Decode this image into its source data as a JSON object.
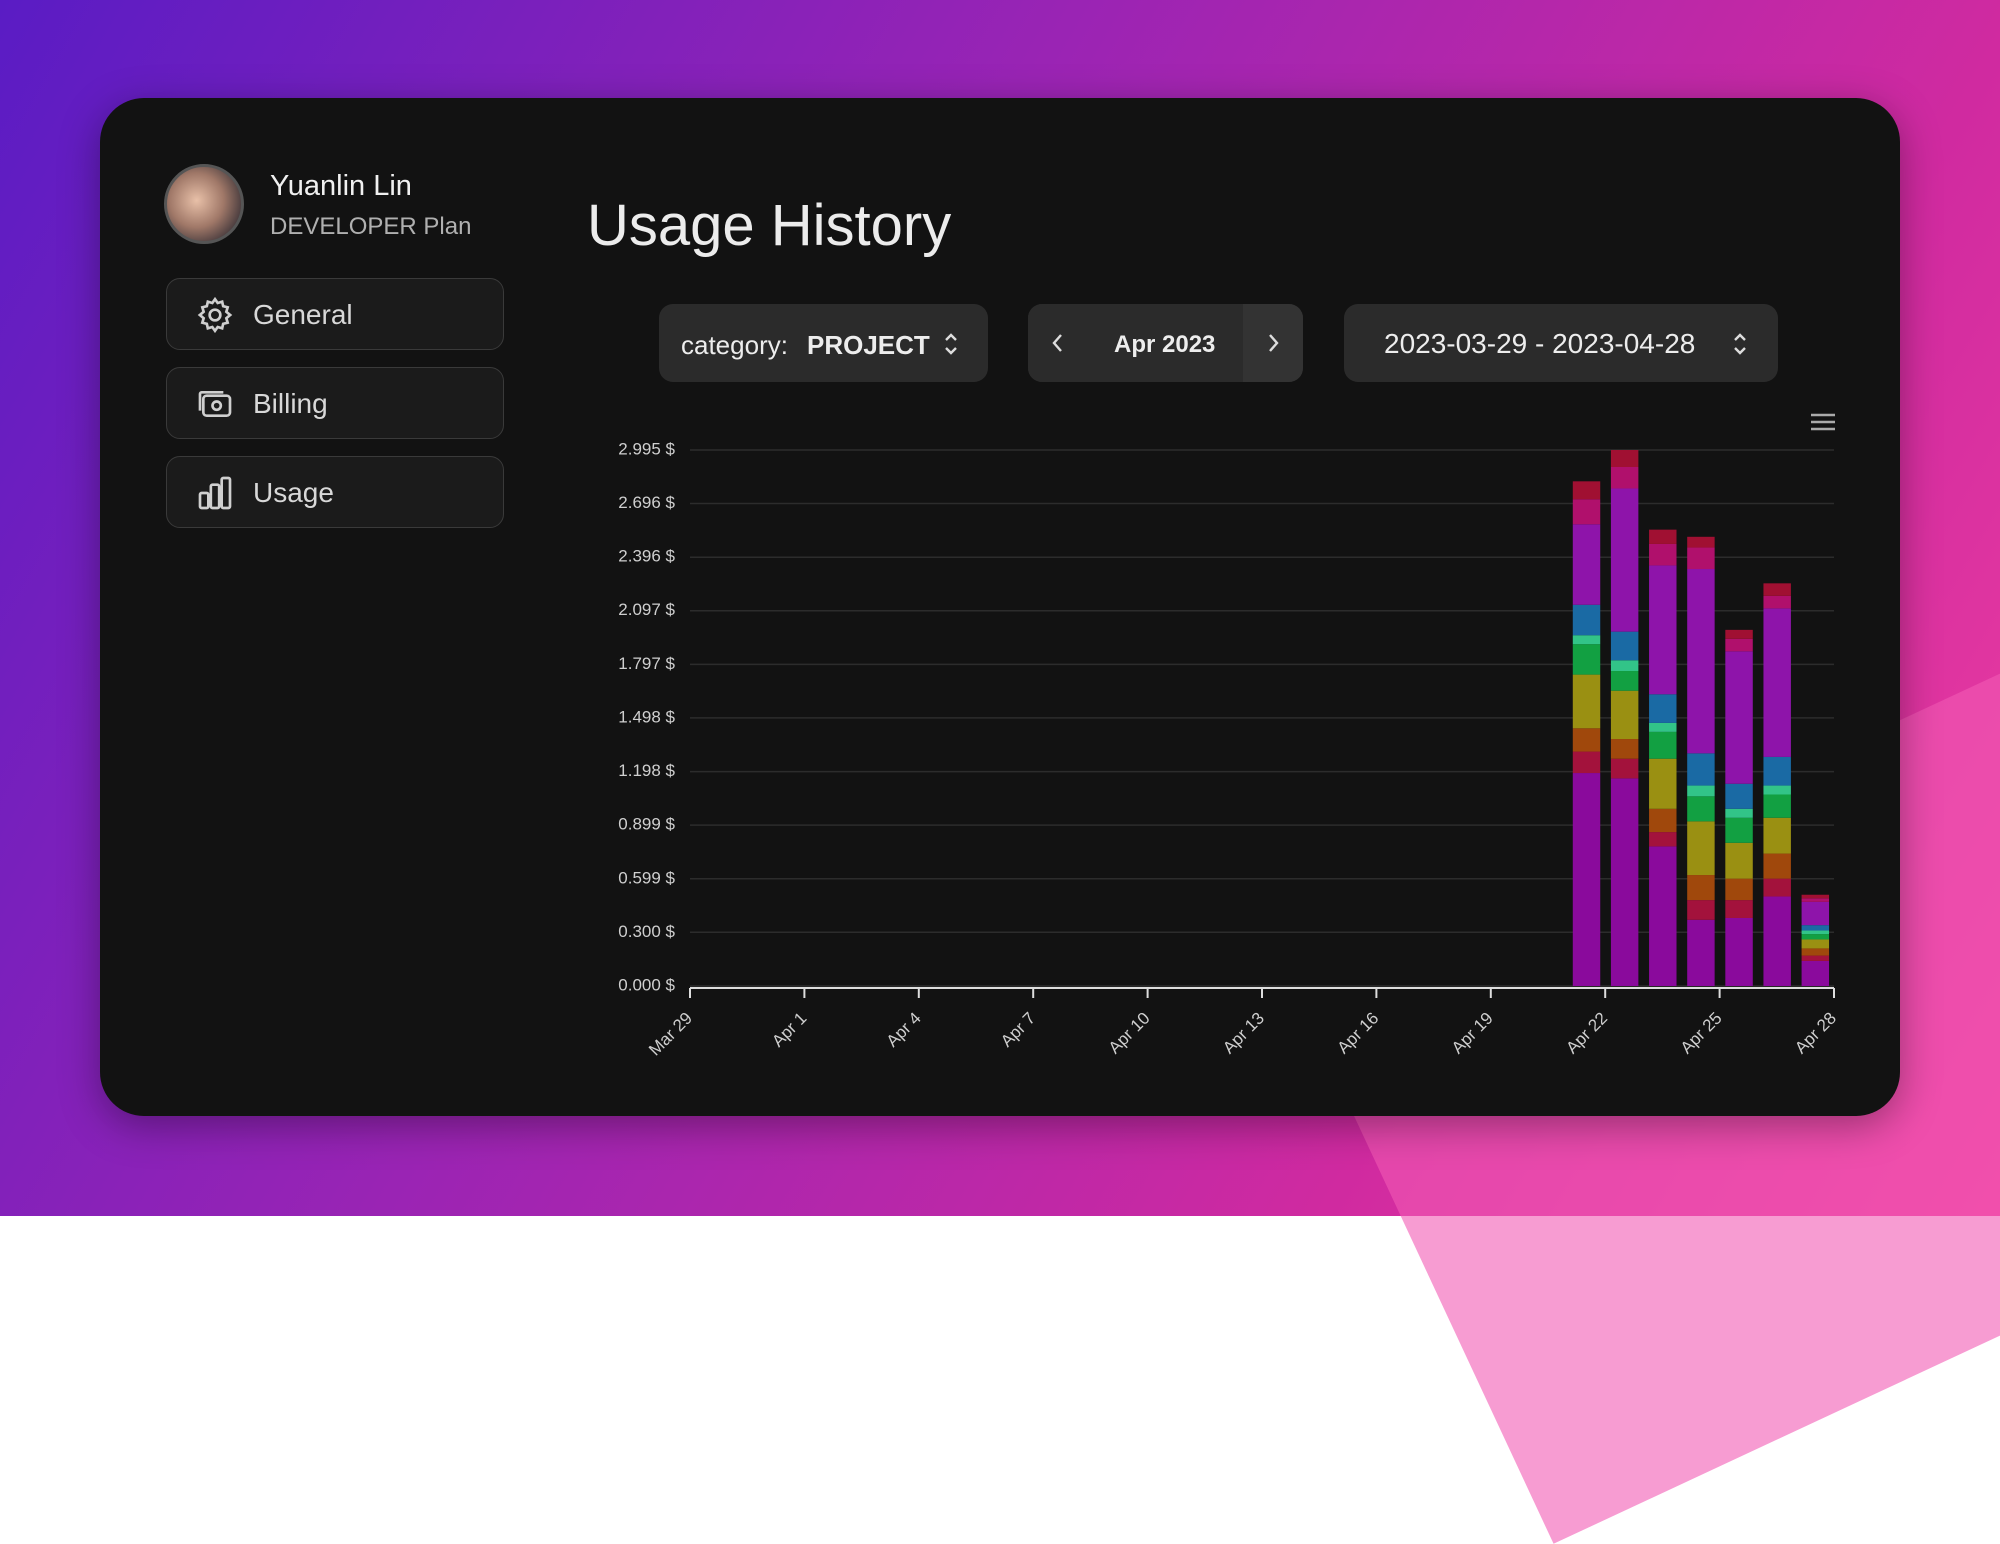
{
  "sidebar": {
    "user_name": "Yuanlin Lin",
    "plan": "DEVELOPER Plan",
    "nav": [
      "General",
      "Billing",
      "Usage"
    ]
  },
  "header": {
    "title": "Usage History"
  },
  "controls": {
    "category_label": "category:",
    "category_value": "PROJECT",
    "month": "Apr 2023",
    "date_range": "2023-03-29 - 2023-04-28"
  },
  "chart_data": {
    "type": "stacked_bar",
    "categories": [
      "Mar 29",
      null,
      null,
      "Apr 1",
      null,
      null,
      "Apr 4",
      null,
      null,
      "Apr 7",
      null,
      null,
      "Apr 10",
      null,
      null,
      "Apr 13",
      null,
      null,
      "Apr 16",
      null,
      null,
      "Apr 19",
      null,
      null,
      "Apr 22",
      null,
      null,
      "Apr 25",
      null,
      null,
      "Apr 28"
    ],
    "series": [
      {
        "color": "#8a0a9c",
        "values": [
          0,
          0,
          0,
          0,
          0,
          0,
          0,
          0,
          0,
          0,
          0,
          0,
          0,
          0,
          0,
          0,
          0,
          0,
          0,
          0,
          0,
          0,
          0,
          0,
          1.19,
          1.16,
          0.78,
          0.37,
          0.38,
          0.5,
          0.14
        ]
      },
      {
        "color": "#a3123c",
        "values": [
          0,
          0,
          0,
          0,
          0,
          0,
          0,
          0,
          0,
          0,
          0,
          0,
          0,
          0,
          0,
          0,
          0,
          0,
          0,
          0,
          0,
          0,
          0,
          0,
          0.12,
          0.11,
          0.08,
          0.11,
          0.1,
          0.1,
          0.03
        ]
      },
      {
        "color": "#a0480c",
        "values": [
          0,
          0,
          0,
          0,
          0,
          0,
          0,
          0,
          0,
          0,
          0,
          0,
          0,
          0,
          0,
          0,
          0,
          0,
          0,
          0,
          0,
          0,
          0,
          0,
          0.13,
          0.11,
          0.13,
          0.14,
          0.12,
          0.14,
          0.04
        ]
      },
      {
        "color": "#9a9012",
        "values": [
          0,
          0,
          0,
          0,
          0,
          0,
          0,
          0,
          0,
          0,
          0,
          0,
          0,
          0,
          0,
          0,
          0,
          0,
          0,
          0,
          0,
          0,
          0,
          0,
          0.3,
          0.27,
          0.28,
          0.3,
          0.2,
          0.2,
          0.05
        ]
      },
      {
        "color": "#12a042",
        "values": [
          0,
          0,
          0,
          0,
          0,
          0,
          0,
          0,
          0,
          0,
          0,
          0,
          0,
          0,
          0,
          0,
          0,
          0,
          0,
          0,
          0,
          0,
          0,
          0,
          0.17,
          0.11,
          0.15,
          0.14,
          0.14,
          0.13,
          0.03
        ]
      },
      {
        "color": "#32c488",
        "values": [
          0,
          0,
          0,
          0,
          0,
          0,
          0,
          0,
          0,
          0,
          0,
          0,
          0,
          0,
          0,
          0,
          0,
          0,
          0,
          0,
          0,
          0,
          0,
          0,
          0.05,
          0.06,
          0.05,
          0.06,
          0.05,
          0.05,
          0.02
        ]
      },
      {
        "color": "#1a6aa4",
        "values": [
          0,
          0,
          0,
          0,
          0,
          0,
          0,
          0,
          0,
          0,
          0,
          0,
          0,
          0,
          0,
          0,
          0,
          0,
          0,
          0,
          0,
          0,
          0,
          0,
          0.17,
          0.16,
          0.16,
          0.18,
          0.14,
          0.16,
          0.03
        ]
      },
      {
        "color": "#8e14aa",
        "values": [
          0,
          0,
          0,
          0,
          0,
          0,
          0,
          0,
          0,
          0,
          0,
          0,
          0,
          0,
          0,
          0,
          0,
          0,
          0,
          0,
          0,
          0,
          0,
          0,
          0.45,
          0.8,
          0.72,
          1.03,
          0.74,
          0.83,
          0.13
        ]
      },
      {
        "color": "#b0106c",
        "values": [
          0,
          0,
          0,
          0,
          0,
          0,
          0,
          0,
          0,
          0,
          0,
          0,
          0,
          0,
          0,
          0,
          0,
          0,
          0,
          0,
          0,
          0,
          0,
          0,
          0.14,
          0.12,
          0.12,
          0.12,
          0.07,
          0.07,
          0.02
        ]
      },
      {
        "color": "#a01032",
        "values": [
          0,
          0,
          0,
          0,
          0,
          0,
          0,
          0,
          0,
          0,
          0,
          0,
          0,
          0,
          0,
          0,
          0,
          0,
          0,
          0,
          0,
          0,
          0,
          0,
          0.1,
          0.095,
          0.08,
          0.06,
          0.05,
          0.07,
          0.02
        ]
      }
    ],
    "ylim": [
      0,
      2.995
    ],
    "yticks": [
      {
        "value": 0,
        "label": "0.000 $"
      },
      {
        "value": 0.3,
        "label": "0.300 $"
      },
      {
        "value": 0.599,
        "label": "0.599 $"
      },
      {
        "value": 0.899,
        "label": "0.899 $"
      },
      {
        "value": 1.198,
        "label": "1.198 $"
      },
      {
        "value": 1.498,
        "label": "1.498 $"
      },
      {
        "value": 1.797,
        "label": "1.797 $"
      },
      {
        "value": 2.097,
        "label": "2.097 $"
      },
      {
        "value": 2.396,
        "label": "2.396 $"
      },
      {
        "value": 2.696,
        "label": "2.696 $"
      },
      {
        "value": 2.995,
        "label": "2.995 $"
      }
    ],
    "grid": true
  }
}
